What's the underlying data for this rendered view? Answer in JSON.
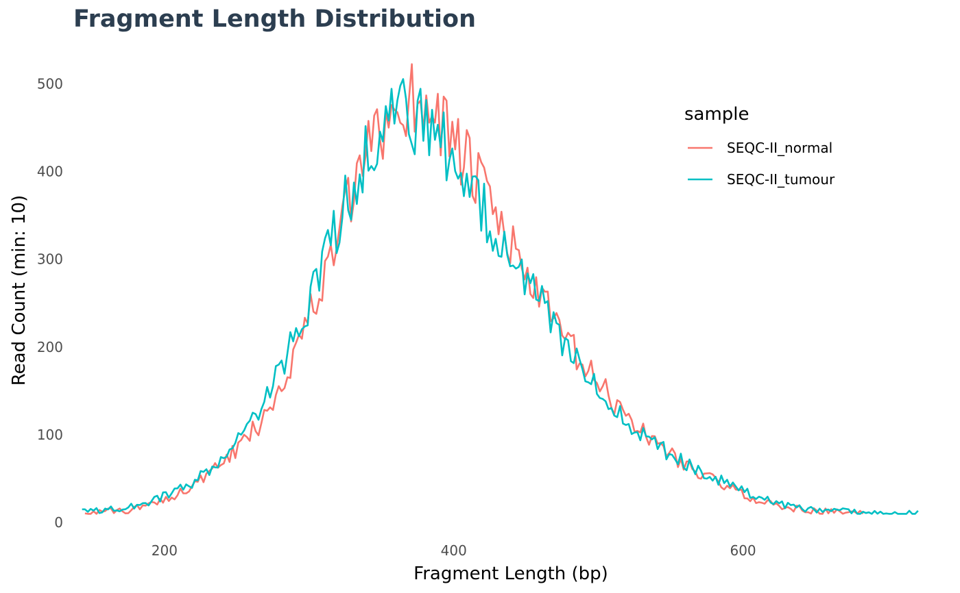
{
  "chart_data": {
    "type": "line",
    "title": "Fragment Length Distribution",
    "xlabel": "Fragment Length (bp)",
    "ylabel": "Read Count (min: 10)",
    "xlim": [
      137,
      723
    ],
    "ylim": [
      -10,
      530
    ],
    "xticks": [
      200,
      400,
      600
    ],
    "yticks": [
      0,
      100,
      200,
      300,
      400,
      500
    ],
    "grid": false,
    "legend": {
      "title": "sample",
      "position": "top-right"
    },
    "series": [
      {
        "name": "SEQC-II_normal",
        "color": "#f8766d",
        "x_start": 145,
        "x_step": 2,
        "points": [
          [
            145,
            12
          ],
          [
            155,
            12
          ],
          [
            165,
            13
          ],
          [
            175,
            14
          ],
          [
            185,
            18
          ],
          [
            195,
            24
          ],
          [
            205,
            30
          ],
          [
            215,
            38
          ],
          [
            225,
            48
          ],
          [
            235,
            60
          ],
          [
            245,
            75
          ],
          [
            255,
            92
          ],
          [
            265,
            112
          ],
          [
            275,
            140
          ],
          [
            285,
            175
          ],
          [
            295,
            215
          ],
          [
            305,
            255
          ],
          [
            315,
            300
          ],
          [
            325,
            350
          ],
          [
            335,
            395
          ],
          [
            345,
            435
          ],
          [
            355,
            462
          ],
          [
            365,
            478
          ],
          [
            375,
            485
          ],
          [
            385,
            475
          ],
          [
            395,
            452
          ],
          [
            405,
            420
          ],
          [
            415,
            392
          ],
          [
            425,
            362
          ],
          [
            435,
            330
          ],
          [
            445,
            300
          ],
          [
            455,
            270
          ],
          [
            465,
            240
          ],
          [
            475,
            215
          ],
          [
            485,
            190
          ],
          [
            495,
            168
          ],
          [
            505,
            148
          ],
          [
            515,
            130
          ],
          [
            525,
            112
          ],
          [
            535,
            98
          ],
          [
            545,
            85
          ],
          [
            555,
            72
          ],
          [
            565,
            62
          ],
          [
            575,
            52
          ],
          [
            585,
            44
          ],
          [
            595,
            36
          ],
          [
            605,
            29
          ],
          [
            615,
            23
          ],
          [
            625,
            19
          ],
          [
            635,
            16
          ],
          [
            645,
            14
          ],
          [
            655,
            13
          ],
          [
            665,
            12
          ],
          [
            675,
            11
          ],
          [
            683,
            10
          ]
        ]
      },
      {
        "name": "SEQC-II_tumour",
        "color": "#00bfc4",
        "x_start": 143,
        "x_step": 2,
        "points": [
          [
            143,
            13
          ],
          [
            155,
            14
          ],
          [
            165,
            15
          ],
          [
            175,
            17
          ],
          [
            185,
            22
          ],
          [
            195,
            27
          ],
          [
            205,
            33
          ],
          [
            215,
            42
          ],
          [
            225,
            52
          ],
          [
            235,
            65
          ],
          [
            245,
            80
          ],
          [
            255,
            100
          ],
          [
            265,
            125
          ],
          [
            275,
            158
          ],
          [
            285,
            192
          ],
          [
            295,
            230
          ],
          [
            305,
            272
          ],
          [
            315,
            318
          ],
          [
            325,
            365
          ],
          [
            335,
            405
          ],
          [
            345,
            440
          ],
          [
            355,
            458
          ],
          [
            365,
            462
          ],
          [
            375,
            455
          ],
          [
            385,
            440
          ],
          [
            395,
            425
          ],
          [
            405,
            400
          ],
          [
            415,
            375
          ],
          [
            425,
            348
          ],
          [
            435,
            318
          ],
          [
            445,
            290
          ],
          [
            455,
            262
          ],
          [
            465,
            235
          ],
          [
            475,
            210
          ],
          [
            485,
            185
          ],
          [
            495,
            165
          ],
          [
            505,
            145
          ],
          [
            515,
            127
          ],
          [
            525,
            110
          ],
          [
            535,
            96
          ],
          [
            545,
            83
          ],
          [
            555,
            72
          ],
          [
            565,
            63
          ],
          [
            575,
            55
          ],
          [
            585,
            47
          ],
          [
            595,
            40
          ],
          [
            605,
            33
          ],
          [
            615,
            27
          ],
          [
            625,
            22
          ],
          [
            635,
            18
          ],
          [
            645,
            15
          ],
          [
            655,
            14
          ],
          [
            665,
            13
          ],
          [
            675,
            12
          ],
          [
            685,
            11
          ],
          [
            695,
            10
          ],
          [
            705,
            10
          ],
          [
            715,
            11
          ],
          [
            722,
            10
          ]
        ]
      }
    ]
  }
}
